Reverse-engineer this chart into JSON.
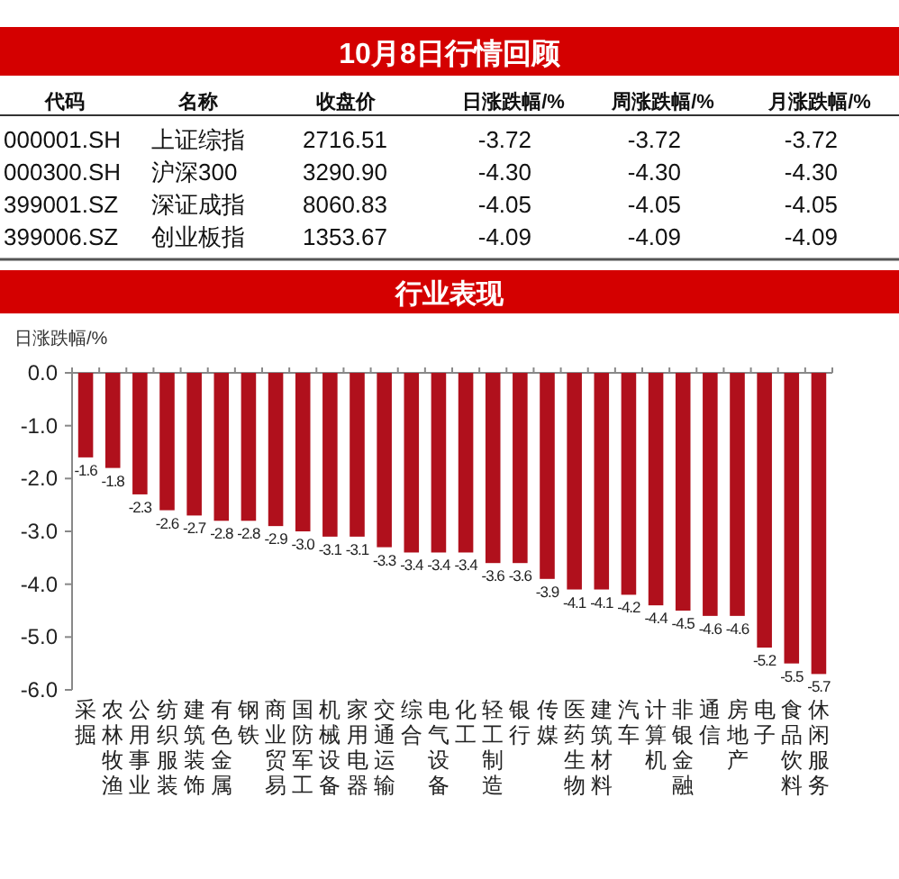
{
  "chart_data": [
    {
      "type": "other",
      "title": "10月8日行情回顾",
      "categories": [
        "代码",
        "名称",
        "收盘价",
        "日涨跌幅/%",
        "周涨跌幅/%",
        "月涨跌幅/%"
      ],
      "cell_labels": [
        [
          "000001.SH",
          "上证综指",
          "2716.51",
          "-3.72",
          "-3.72",
          "-3.72"
        ],
        [
          "000300.SH",
          "沪深300",
          "3290.90",
          "-4.30",
          "-4.30",
          "-4.30"
        ],
        [
          "399001.SZ",
          "深证成指",
          "8060.83",
          "-4.05",
          "-4.05",
          "-4.05"
        ],
        [
          "399006.SZ",
          "创业板指",
          "1353.67",
          "-4.09",
          "-4.09",
          "-4.09"
        ]
      ]
    },
    {
      "type": "bar",
      "title": "行业表现",
      "ylabel": "日涨跌幅/%",
      "color": "#b0101c",
      "categories": [
        "采掘",
        "农林牧渔",
        "公用事业",
        "纺织服装",
        "建筑装饰",
        "有色金属",
        "钢铁",
        "商业贸易",
        "国防军工",
        "机械设备",
        "家用电器",
        "交通运输",
        "综合",
        "电气设备",
        "化工",
        "轻工制造",
        "银行",
        "传媒",
        "医药生物",
        "建筑材料",
        "汽车",
        "计算机",
        "非银金融",
        "通信",
        "房地产",
        "电子",
        "食品饮料",
        "休闲服务"
      ],
      "values": [
        -1.6,
        -1.8,
        -2.3,
        -2.6,
        -2.7,
        -2.8,
        -2.8,
        -2.9,
        -3.0,
        -3.1,
        -3.1,
        -3.3,
        -3.4,
        -3.4,
        -3.4,
        -3.6,
        -3.6,
        -3.9,
        -4.1,
        -4.1,
        -4.2,
        -4.4,
        -4.5,
        -4.6,
        -4.6,
        -5.2,
        -5.5,
        -5.7
      ],
      "value_labels": [
        "-1.6",
        "-1.8",
        "-2.3",
        "-2.6",
        "-2.7",
        "-2.8",
        "-2.8",
        "-2.9",
        "-3.0",
        "-3.1",
        "-3.1",
        "-3.3",
        "-3.4",
        "-3.4",
        "-3.4",
        "-3.6",
        "-3.6",
        "-3.9",
        "-4.1",
        "-4.1",
        "-4.2",
        "-4.4",
        "-4.5",
        "-4.6",
        "-4.6",
        "-5.2",
        "-5.5",
        "-5.7"
      ],
      "ylim": [
        -6,
        0
      ],
      "yticks": [
        {
          "value": 0,
          "label": "0.0"
        },
        {
          "value": -1,
          "label": "-1.0"
        },
        {
          "value": -2,
          "label": "-2.0"
        },
        {
          "value": -3,
          "label": "-3.0"
        },
        {
          "value": -4,
          "label": "-4.0"
        },
        {
          "value": -5,
          "label": "-5.0"
        },
        {
          "value": -6,
          "label": "-6.0"
        }
      ]
    }
  ]
}
